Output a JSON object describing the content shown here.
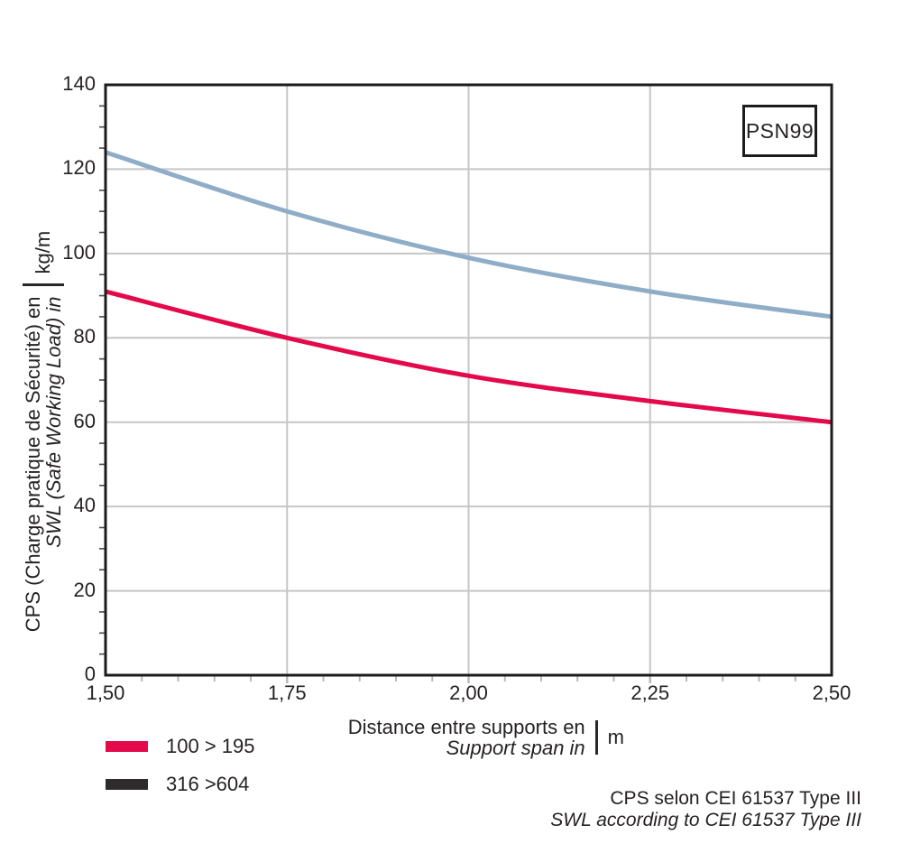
{
  "chart_data": {
    "type": "line",
    "title": "",
    "x": [
      1.5,
      1.75,
      2.0,
      2.25,
      2.5
    ],
    "series": [
      {
        "name": "316 >604",
        "line_color": "#8fadc7",
        "legend_swatch_color": "#2e2b2c",
        "values": [
          124,
          110,
          99,
          91,
          85
        ]
      },
      {
        "name": "100 > 195",
        "line_color": "#e3094b",
        "legend_swatch_color": "#e3094b",
        "values": [
          91,
          80,
          71,
          65,
          60
        ]
      }
    ],
    "xlim": [
      1.5,
      2.5
    ],
    "ylim": [
      0,
      140
    ],
    "x_tick_values": [
      1.5,
      1.75,
      2.0,
      2.25,
      2.5
    ],
    "x_tick_labels": [
      "1,50",
      "1,75",
      "2,00",
      "2,25",
      "2,50"
    ],
    "y_tick_values": [
      0,
      20,
      40,
      60,
      80,
      100,
      120,
      140
    ],
    "y_tick_labels": [
      "0",
      "20",
      "40",
      "60",
      "80",
      "100",
      "120",
      "140"
    ],
    "x_minor_step": 0.05,
    "y_minor_step": 5,
    "grid": true,
    "legend_position": "bottom-left",
    "xlabel_fr": "Distance entre supports en",
    "xlabel_en": "Support span in",
    "x_unit": "m",
    "ylabel_fr": "CPS (Charge pratique de Sécurité) en",
    "ylabel_en": "SWL (Safe Working Load) in",
    "y_unit": "kg/m",
    "annotation": "PSN99"
  },
  "legend": {
    "items": [
      {
        "label": "100 > 195",
        "swatch_color": "#e3094b"
      },
      {
        "label": "316 >604",
        "swatch_color": "#2e2b2c"
      }
    ]
  },
  "caption": {
    "line1": "CPS selon CEI 61537 Type III",
    "line2": "SWL according to CEI 61537 Type III"
  },
  "colors": {
    "frame": "#1d1b1b",
    "grid": "#c6c6c6",
    "text": "#262223",
    "y_minor_tick": "#4c4a4a",
    "x_minor_tick": "#b9b9b9"
  }
}
